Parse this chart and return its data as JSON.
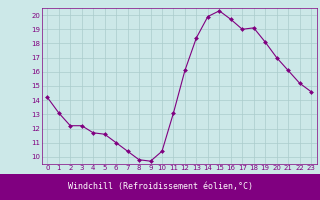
{
  "x": [
    0,
    1,
    2,
    3,
    4,
    5,
    6,
    7,
    8,
    9,
    10,
    11,
    12,
    13,
    14,
    15,
    16,
    17,
    18,
    19,
    20,
    21,
    22,
    23
  ],
  "y": [
    14.2,
    13.1,
    12.2,
    12.2,
    11.7,
    11.6,
    11.0,
    10.4,
    9.8,
    9.7,
    10.4,
    13.1,
    16.1,
    18.4,
    19.9,
    20.3,
    19.7,
    19.0,
    19.1,
    18.1,
    17.0,
    16.1,
    15.2,
    14.6
  ],
  "line_color": "#800080",
  "marker": "D",
  "marker_size": 2.0,
  "bg_color": "#cce8e8",
  "grid_color": "#aacccc",
  "xlabel": "Windchill (Refroidissement éolien,°C)",
  "xlabel_bg": "#800080",
  "xlabel_color": "#ffffff",
  "xlim": [
    -0.5,
    23.5
  ],
  "ylim": [
    9.5,
    20.5
  ],
  "yticks": [
    10,
    11,
    12,
    13,
    14,
    15,
    16,
    17,
    18,
    19,
    20
  ],
  "xticks": [
    0,
    1,
    2,
    3,
    4,
    5,
    6,
    7,
    8,
    9,
    10,
    11,
    12,
    13,
    14,
    15,
    16,
    17,
    18,
    19,
    20,
    21,
    22,
    23
  ],
  "tick_fontsize": 5.0,
  "xlabel_fontsize": 6.0
}
